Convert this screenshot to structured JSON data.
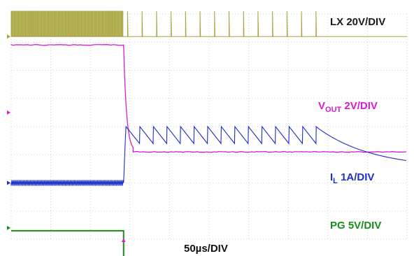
{
  "chart_data": {
    "type": "line",
    "time_per_div": "50µs/DIV",
    "grid": {
      "divisions_x": 10,
      "divisions_y": 8,
      "grid_on": true
    },
    "x_range_us": [
      0,
      500
    ],
    "event_time_us": 142,
    "series": [
      {
        "name_main": "LX",
        "name_full": "LX 20V/DIV",
        "scale": "20V/DIV",
        "color": "#a8a23a",
        "before": {
          "behavior": "dense switching pulses"
        },
        "after": {
          "pulses": 14,
          "last_pulse_us": 385,
          "behavior": "pulse-skipping"
        }
      },
      {
        "name_main": "V",
        "name_sub": "OUT",
        "scale": "2V/DIV",
        "color": "#d61ad6",
        "before_level_div": 2.9,
        "after_level_div": -0.9,
        "fall_time_us": 12
      },
      {
        "name_main": "I",
        "name_sub": "L",
        "scale": "1A/DIV",
        "color": "#1e2ec8",
        "before_level_div": -2.0,
        "ripple_peak_div": 0.0,
        "ripple_valley_div": -0.6,
        "ramps": 14,
        "decay_after_us": 385
      },
      {
        "name_main": "PG",
        "name_full": "PG 5V/DIV",
        "scale": "5V/DIV",
        "color": "#1a8c1a",
        "before_level_div": -3.7,
        "after_level_div": -4.65
      }
    ]
  }
}
